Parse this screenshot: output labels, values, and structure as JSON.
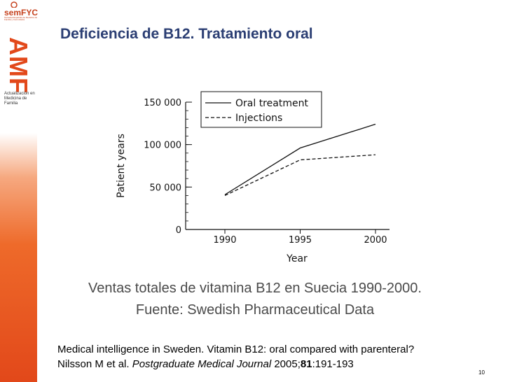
{
  "branding": {
    "logo_text": "semFYC",
    "logo_subtext": "Sociedad Española de Medicina de Familia y Comunitaria",
    "amf_text": "AMF",
    "amf_caption": "Actualización en Medicina de Familia",
    "accent_color": "#e2481a",
    "title_color": "#2b3e73"
  },
  "slide": {
    "title": "Deficiencia de B12. Tratamiento oral",
    "caption_line1": "Ventas totales de vitamina B12 en Suecia 1990-2000.",
    "caption_line2": "Fuente: Swedish Pharmaceutical Data",
    "reference": {
      "line1": "Medical intelligence in Sweden. Vitamin B12: oral compared with parenteral?",
      "authors": "Nilsson M et al. ",
      "journal": "Postgraduate Medical Journal",
      "year": " 2005;",
      "volume": "81",
      "pages": ":191-193"
    },
    "page_number": "10"
  },
  "chart_data": {
    "type": "line",
    "xlabel": "Year",
    "ylabel": "Patient years",
    "x": [
      1990,
      1995,
      2000
    ],
    "xlim": [
      1990,
      2000
    ],
    "ylim": [
      0,
      150000
    ],
    "x_ticks": [
      "1990",
      "1995",
      "2000"
    ],
    "y_ticks": [
      {
        "value": 0,
        "label": "0"
      },
      {
        "value": 50000,
        "label": "50 000"
      },
      {
        "value": 100000,
        "label": "100 000"
      },
      {
        "value": 150000,
        "label": "150 000"
      }
    ],
    "series": [
      {
        "name": "Oral treatment",
        "style": "solid",
        "values": [
          41000,
          96000,
          124000
        ]
      },
      {
        "name": "Injections",
        "style": "dashed",
        "values": [
          40000,
          82000,
          88000
        ]
      }
    ],
    "legend_position": "top-right",
    "grid": false
  }
}
